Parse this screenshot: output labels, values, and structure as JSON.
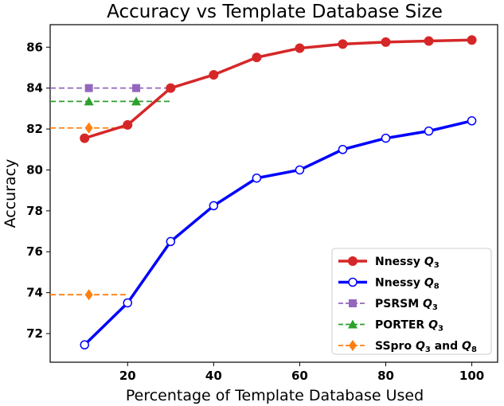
{
  "chart_data": {
    "type": "line",
    "title": "Accuracy vs Template Database Size",
    "xlabel": "Percentage of Template Database Used",
    "ylabel": "Accuracy",
    "xlim": [
      2,
      106
    ],
    "ylim": [
      70.6,
      87.1
    ],
    "xticks": [
      20,
      40,
      60,
      80,
      100
    ],
    "yticks": [
      72,
      74,
      76,
      78,
      80,
      82,
      84,
      86
    ],
    "grid": false,
    "legend_position": "lower-right",
    "series": [
      {
        "name": "Nnessy Q3",
        "label_main": "Nnessy ",
        "label_sym": "Q",
        "label_sub": "3",
        "color": "#d62728",
        "marker": "circle-filled",
        "linestyle": "solid",
        "x": [
          10,
          20,
          30,
          40,
          50,
          60,
          70,
          80,
          90,
          100
        ],
        "y": [
          81.55,
          82.2,
          84.0,
          84.65,
          85.5,
          85.95,
          86.15,
          86.25,
          86.3,
          86.35
        ]
      },
      {
        "name": "Nnessy Q8",
        "label_main": "Nnessy ",
        "label_sym": "Q",
        "label_sub": "8",
        "color": "#0000ff",
        "marker": "circle-open",
        "linestyle": "solid",
        "x": [
          10,
          20,
          30,
          40,
          50,
          60,
          70,
          80,
          90,
          100
        ],
        "y": [
          71.45,
          73.5,
          76.5,
          78.25,
          79.6,
          80.0,
          81.0,
          81.55,
          81.9,
          82.4
        ]
      },
      {
        "name": "PSRSM Q3",
        "label_main": "PSRSM ",
        "label_sym": "Q",
        "label_sub": "3",
        "color": "#9467bd",
        "marker": "square",
        "linestyle": "dashed",
        "x": [
          11,
          22
        ],
        "y": [
          84.0,
          84.0
        ],
        "line_x": [
          2,
          30
        ]
      },
      {
        "name": "PORTER Q3",
        "label_main": "PORTER ",
        "label_sym": "Q",
        "label_sub": "3",
        "color": "#2ca02c",
        "marker": "triangle",
        "linestyle": "dashed",
        "x": [
          11,
          22
        ],
        "y": [
          83.35,
          83.35
        ],
        "line_x": [
          2,
          30
        ]
      },
      {
        "name": "SSpro Q3 and Q8",
        "label_main": "SSpro ",
        "label_sym": "Q",
        "label_sub": "3",
        "label_mid": " and ",
        "label_sym2": "Q",
        "label_sub2": "8",
        "color": "#ff7f0e",
        "marker": "diamond",
        "linestyle": "dashed",
        "x": [
          11
        ],
        "y": [
          82.05
        ],
        "line_x": [
          2,
          20
        ],
        "extra_points": [
          {
            "x": 11,
            "y": 73.9,
            "line_x": [
              2,
              20
            ]
          }
        ]
      }
    ]
  }
}
